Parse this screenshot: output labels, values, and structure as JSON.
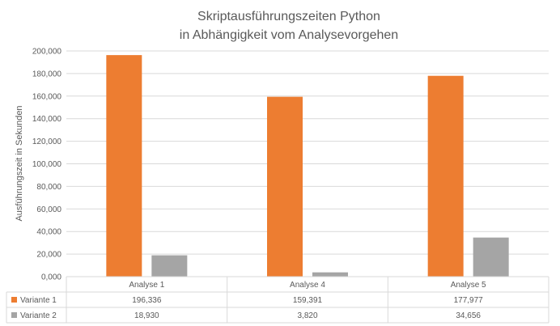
{
  "chart_data": {
    "type": "bar",
    "title": [
      "Skriptausführungszeiten Python",
      "in Abhängigkeit vom Analysevorgehen"
    ],
    "ylabel": "Ausführungszeit in Sekunden",
    "xlabel": "",
    "categories": [
      "Analyse 1",
      "Analyse 4",
      "Analyse 5"
    ],
    "series": [
      {
        "name": "Variante 1",
        "values": [
          196.336,
          159.391,
          177.977
        ],
        "labels": [
          "196,336",
          "159,391",
          "177,977"
        ],
        "color": "#ED7D31"
      },
      {
        "name": "Variante 2",
        "values": [
          18.93,
          3.82,
          34.656
        ],
        "labels": [
          "18,930",
          "3,820",
          "34,656"
        ],
        "color": "#A5A5A5"
      }
    ],
    "ylim": [
      0,
      200
    ],
    "yticks": [
      0,
      20,
      40,
      60,
      80,
      100,
      120,
      140,
      160,
      180,
      200
    ],
    "ytick_labels": [
      "0,000",
      "20,000",
      "40,000",
      "60,000",
      "80,000",
      "100,000",
      "120,000",
      "140,000",
      "160,000",
      "180,000",
      "200,000"
    ],
    "grid": true,
    "legend": "data-table"
  }
}
